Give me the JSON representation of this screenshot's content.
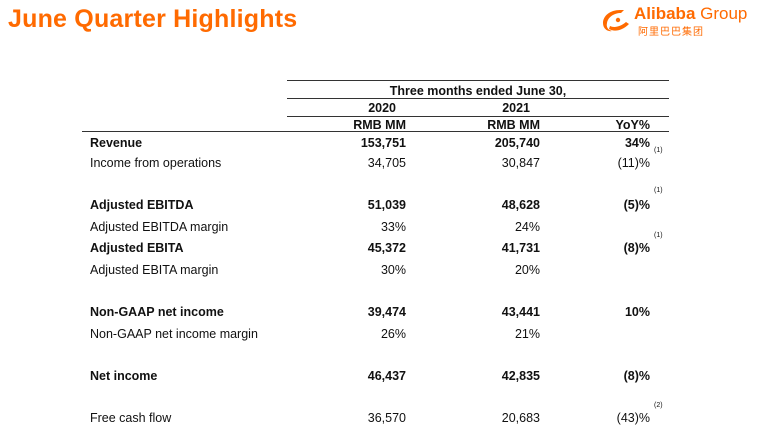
{
  "title": "June Quarter Highlights",
  "logo": {
    "text_bold": "Alibaba",
    "text_light": " Group",
    "cn": "阿里巴巴集团",
    "icon": "alibaba-logo-icon",
    "color": "#ff6a00"
  },
  "header": {
    "period": "Three months ended June 30,",
    "year1": "2020",
    "year2": "2021",
    "unit1": "RMB MM",
    "unit2": "RMB MM",
    "yoy": "YoY%"
  },
  "rows": [
    {
      "label": "Revenue",
      "v2020": "153,751",
      "v2021": "205,740",
      "yoy": "34%",
      "bold": true,
      "footnote": "(1)"
    },
    {
      "label": "Income from operations",
      "v2020": "34,705",
      "v2021": "30,847",
      "yoy": "(11)%",
      "bold": false,
      "footnote": ""
    },
    {
      "label": "Adjusted EBITDA",
      "v2020": "51,039",
      "v2021": "48,628",
      "yoy": "(5)%",
      "bold": true,
      "footnote": "(1)"
    },
    {
      "label": "Adjusted EBITDA margin",
      "v2020": "33%",
      "v2021": "24%",
      "yoy": "",
      "bold": false,
      "footnote": ""
    },
    {
      "label": "Adjusted EBITA",
      "v2020": "45,372",
      "v2021": "41,731",
      "yoy": "(8)%",
      "bold": true,
      "footnote": "(1)"
    },
    {
      "label": "Adjusted EBITA margin",
      "v2020": "30%",
      "v2021": "20%",
      "yoy": "",
      "bold": false,
      "footnote": ""
    },
    {
      "label": "Non-GAAP net income",
      "v2020": "39,474",
      "v2021": "43,441",
      "yoy": "10%",
      "bold": true,
      "footnote": ""
    },
    {
      "label": "Non-GAAP net income margin",
      "v2020": "26%",
      "v2021": "21%",
      "yoy": "",
      "bold": false,
      "footnote": ""
    },
    {
      "label": "Net income",
      "v2020": "46,437",
      "v2021": "42,835",
      "yoy": "(8)%",
      "bold": true,
      "footnote": ""
    },
    {
      "label": "Free cash flow",
      "v2020": "36,570",
      "v2021": "20,683",
      "yoy": "(43)%",
      "bold": false,
      "footnote": "(2)"
    }
  ]
}
